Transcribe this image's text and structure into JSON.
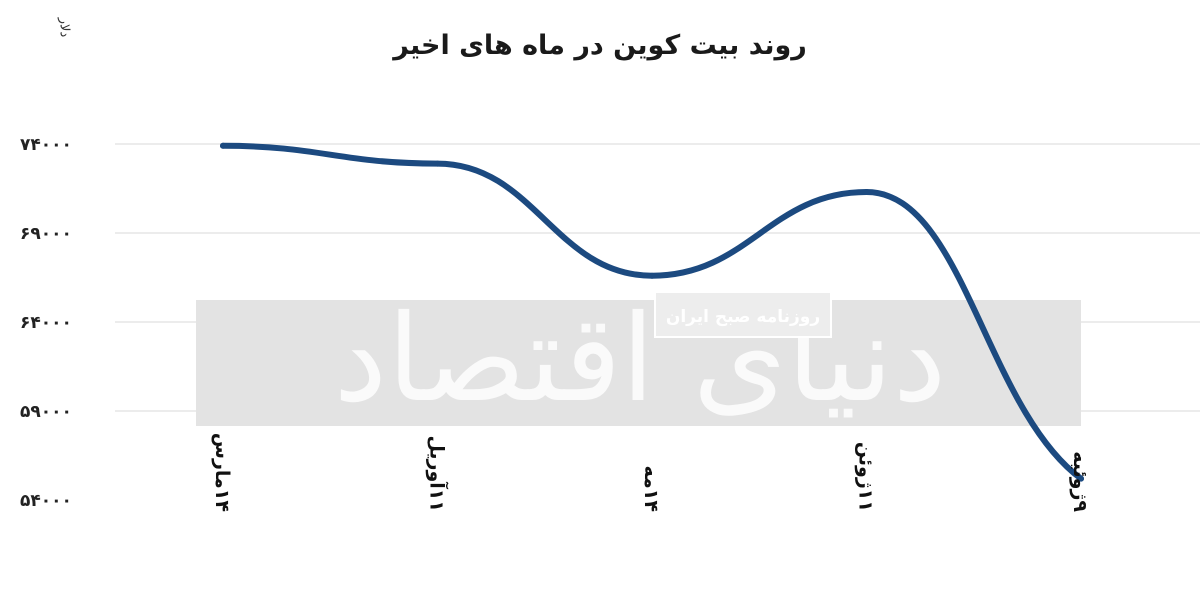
{
  "chart_data": {
    "type": "line",
    "title": "روند بیت کوین در ماه های اخیر",
    "ylabel": "دلار",
    "xlabel": "",
    "categories": [
      "۱۴مارس",
      "۱۱آوریل",
      "۱۴مه",
      "۱۱ژوئن",
      "۹ژوئیه"
    ],
    "series": [
      {
        "values": [
          73900,
          72900,
          66600,
          71300,
          55200
        ],
        "color": "#1c4a80"
      }
    ],
    "yticks": [
      74000,
      69000,
      64000,
      59000,
      54000
    ],
    "ytick_labels": [
      "۷۴۰۰۰",
      "۶۹۰۰۰",
      "۶۴۰۰۰",
      "۵۹۰۰۰",
      "۵۴۰۰۰"
    ],
    "ylim": [
      54000,
      74000
    ],
    "grid": true,
    "smooth": true
  },
  "watermark": {
    "brand": "دنیای اقتصاد",
    "tagline": "روزنامه صبح ایران"
  },
  "colors": {
    "line": "#1c4a80",
    "grid": "#d9d9d9",
    "watermark_band": "#e3e3e3"
  }
}
